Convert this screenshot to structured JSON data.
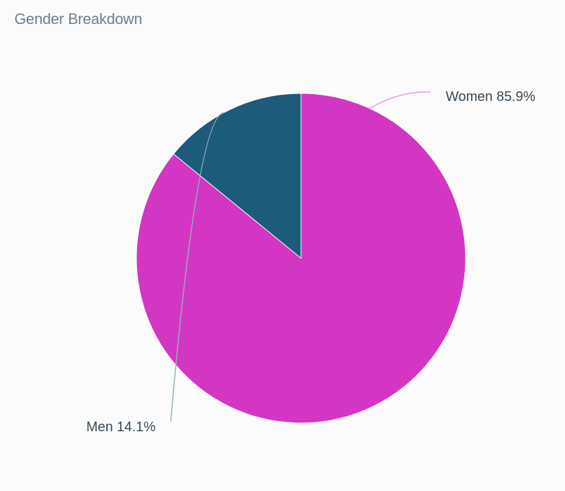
{
  "chart_data": {
    "type": "pie",
    "title": "Gender Breakdown",
    "slices": [
      {
        "name": "Women",
        "value": 85.9,
        "label": "Women 85.9%",
        "color": "#d336c3",
        "leader_color": "#e79ade"
      },
      {
        "name": "Men",
        "value": 14.1,
        "label": "Men 14.1%",
        "color": "#1c5b79",
        "leader_color": "#94b2bf"
      }
    ],
    "legend": "none"
  }
}
